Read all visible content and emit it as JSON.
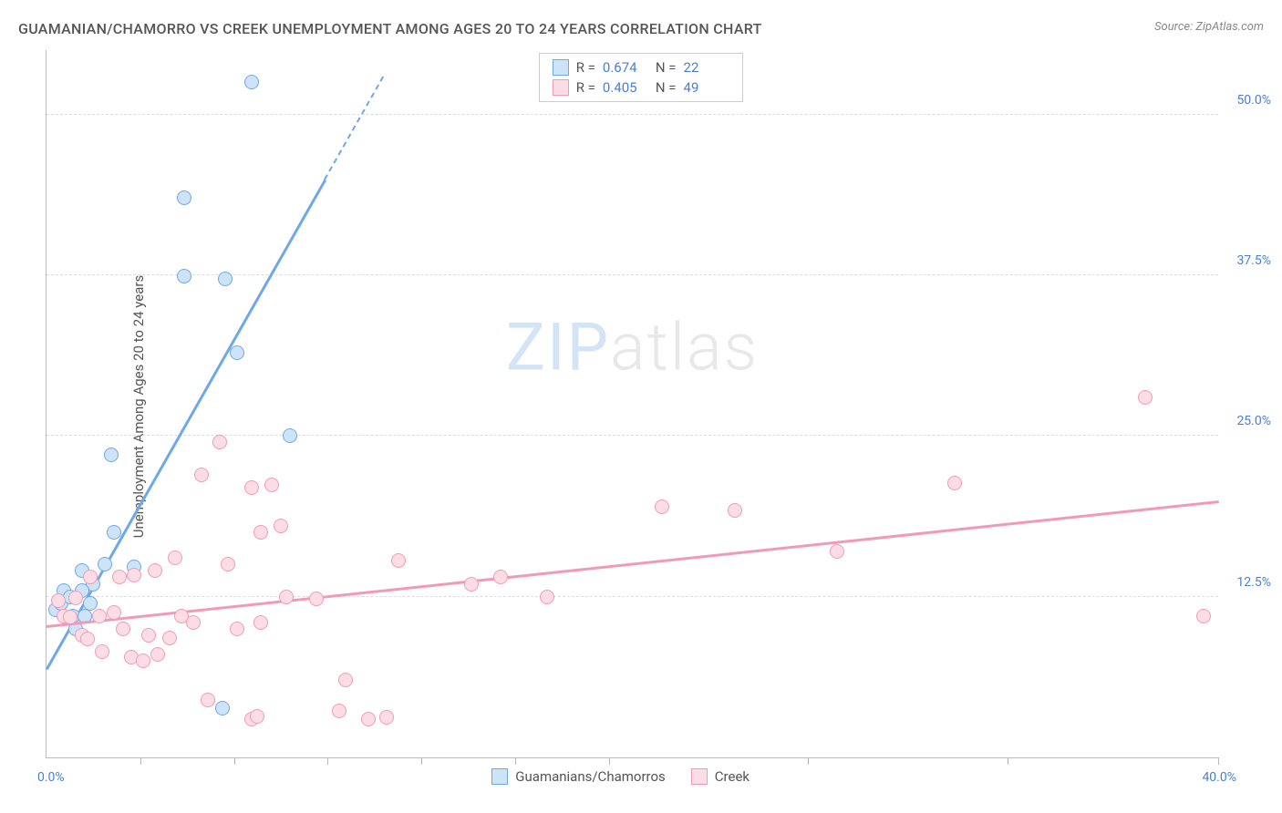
{
  "title": "GUAMANIAN/CHAMORRO VS CREEK UNEMPLOYMENT AMONG AGES 20 TO 24 YEARS CORRELATION CHART",
  "source": "Source: ZipAtlas.com",
  "y_axis_label": "Unemployment Among Ages 20 to 24 years",
  "watermark": {
    "zip": "ZIP",
    "atlas": "atlas"
  },
  "chart": {
    "type": "scatter",
    "background_color": "#ffffff",
    "grid_color": "#dddddd",
    "axis_color": "#bbbbbb",
    "xlim": [
      0,
      40
    ],
    "ylim": [
      0,
      55
    ],
    "x_min_label": "0.0%",
    "x_max_label": "40.0%",
    "y_ticks": [
      {
        "value": 12.5,
        "label": "12.5%"
      },
      {
        "value": 25.0,
        "label": "25.0%"
      },
      {
        "value": 37.5,
        "label": "37.5%"
      },
      {
        "value": 50.0,
        "label": "50.0%"
      }
    ],
    "x_ticks": [
      3.2,
      6.4,
      9.6,
      12.8,
      16.0,
      19.2,
      26.0,
      32.8,
      40.0
    ],
    "series": [
      {
        "name": "Guamanians/Chamorros",
        "fill": "#cde3f7",
        "stroke": "#6fa8e8",
        "marker_radius": 8,
        "R": "0.674",
        "N": "22",
        "regression": {
          "x1": 0,
          "y1": 7.0,
          "x2": 9.5,
          "y2": 45.0,
          "dashed_to": 53.0,
          "dashed_x2": 11.5
        },
        "points": [
          {
            "x": 0.3,
            "y": 11.5
          },
          {
            "x": 0.5,
            "y": 12.0
          },
          {
            "x": 0.6,
            "y": 13.0
          },
          {
            "x": 0.8,
            "y": 12.5
          },
          {
            "x": 0.9,
            "y": 11.0
          },
          {
            "x": 1.0,
            "y": 10.0
          },
          {
            "x": 1.2,
            "y": 14.5
          },
          {
            "x": 1.3,
            "y": 11.0
          },
          {
            "x": 1.5,
            "y": 12.0
          },
          {
            "x": 1.6,
            "y": 13.5
          },
          {
            "x": 1.2,
            "y": 13.0
          },
          {
            "x": 2.3,
            "y": 17.5
          },
          {
            "x": 2.0,
            "y": 15.0
          },
          {
            "x": 2.2,
            "y": 23.5
          },
          {
            "x": 3.0,
            "y": 14.8
          },
          {
            "x": 4.7,
            "y": 37.4
          },
          {
            "x": 6.1,
            "y": 37.2
          },
          {
            "x": 4.7,
            "y": 43.5
          },
          {
            "x": 6.5,
            "y": 31.5
          },
          {
            "x": 7.0,
            "y": 52.5
          },
          {
            "x": 8.3,
            "y": 25.0
          },
          {
            "x": 6.0,
            "y": 3.8
          }
        ]
      },
      {
        "name": "Creek",
        "fill": "#fcdde5",
        "stroke": "#f29ab5",
        "marker_radius": 8,
        "R": "0.405",
        "N": "49",
        "regression": {
          "x1": 0,
          "y1": 10.3,
          "x2": 40,
          "y2": 20.0
        },
        "points": [
          {
            "x": 0.4,
            "y": 12.2
          },
          {
            "x": 0.6,
            "y": 11.0
          },
          {
            "x": 0.8,
            "y": 10.9
          },
          {
            "x": 1.0,
            "y": 12.4
          },
          {
            "x": 1.2,
            "y": 9.5
          },
          {
            "x": 1.4,
            "y": 9.2
          },
          {
            "x": 1.5,
            "y": 14.0
          },
          {
            "x": 1.8,
            "y": 11.0
          },
          {
            "x": 1.9,
            "y": 8.2
          },
          {
            "x": 2.3,
            "y": 11.3
          },
          {
            "x": 2.5,
            "y": 14.0
          },
          {
            "x": 2.6,
            "y": 10.0
          },
          {
            "x": 2.9,
            "y": 7.8
          },
          {
            "x": 3.0,
            "y": 14.2
          },
          {
            "x": 3.3,
            "y": 7.5
          },
          {
            "x": 3.5,
            "y": 9.5
          },
          {
            "x": 3.7,
            "y": 14.5
          },
          {
            "x": 3.8,
            "y": 8.0
          },
          {
            "x": 4.2,
            "y": 9.3
          },
          {
            "x": 4.4,
            "y": 15.5
          },
          {
            "x": 4.6,
            "y": 11.0
          },
          {
            "x": 5.0,
            "y": 10.5
          },
          {
            "x": 5.3,
            "y": 22.0
          },
          {
            "x": 5.5,
            "y": 4.5
          },
          {
            "x": 5.9,
            "y": 24.5
          },
          {
            "x": 6.2,
            "y": 15.0
          },
          {
            "x": 6.5,
            "y": 10.0
          },
          {
            "x": 7.0,
            "y": 21.0
          },
          {
            "x": 7.0,
            "y": 3.0
          },
          {
            "x": 7.2,
            "y": 3.2
          },
          {
            "x": 7.3,
            "y": 17.5
          },
          {
            "x": 7.3,
            "y": 10.5
          },
          {
            "x": 7.7,
            "y": 21.2
          },
          {
            "x": 8.0,
            "y": 18.0
          },
          {
            "x": 8.2,
            "y": 12.5
          },
          {
            "x": 9.2,
            "y": 12.3
          },
          {
            "x": 10.0,
            "y": 3.6
          },
          {
            "x": 10.2,
            "y": 6.0
          },
          {
            "x": 11.0,
            "y": 3.0
          },
          {
            "x": 11.6,
            "y": 3.1
          },
          {
            "x": 12.0,
            "y": 15.3
          },
          {
            "x": 14.5,
            "y": 13.5
          },
          {
            "x": 15.5,
            "y": 14.0
          },
          {
            "x": 17.1,
            "y": 12.5
          },
          {
            "x": 21.0,
            "y": 19.5
          },
          {
            "x": 23.5,
            "y": 19.2
          },
          {
            "x": 27.0,
            "y": 16.0
          },
          {
            "x": 31.0,
            "y": 21.3
          },
          {
            "x": 37.5,
            "y": 28.0
          },
          {
            "x": 39.5,
            "y": 11.0
          }
        ]
      }
    ]
  },
  "legend_stats_labels": {
    "R": "R  =",
    "N": "N  ="
  },
  "bottom_legend": [
    {
      "name": "Guamanians/Chamorros",
      "fill": "#cde3f7",
      "stroke": "#6fa8e8"
    },
    {
      "name": "Creek",
      "fill": "#fcdde5",
      "stroke": "#f29ab5"
    }
  ]
}
